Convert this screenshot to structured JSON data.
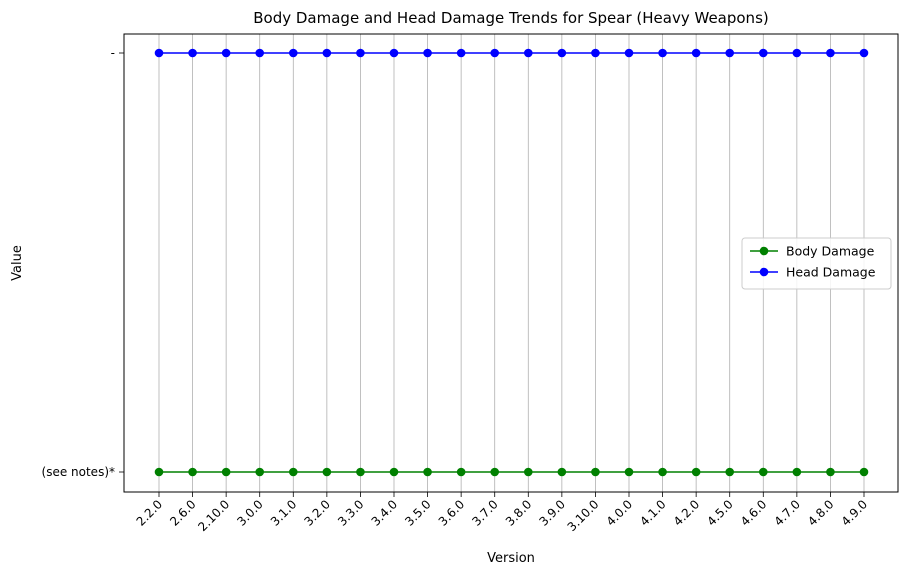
{
  "chart_data": {
    "type": "line",
    "title": "Body Damage and Head Damage Trends for Spear (Heavy Weapons)",
    "xlabel": "Version",
    "ylabel": "Value",
    "categories": [
      "2.2.0",
      "2.6.0",
      "2.10.0",
      "3.0.0",
      "3.1.0",
      "3.2.0",
      "3.3.0",
      "3.4.0",
      "3.5.0",
      "3.6.0",
      "3.7.0",
      "3.8.0",
      "3.9.0",
      "3.10.0",
      "4.0.0",
      "4.1.0",
      "4.2.0",
      "4.5.0",
      "4.6.0",
      "4.7.0",
      "4.8.0",
      "4.9.0"
    ],
    "y_categories": [
      "(see notes)*",
      "-"
    ],
    "series": [
      {
        "name": "Body Damage",
        "color": "#008000",
        "values": [
          "(see notes)*",
          "(see notes)*",
          "(see notes)*",
          "(see notes)*",
          "(see notes)*",
          "(see notes)*",
          "(see notes)*",
          "(see notes)*",
          "(see notes)*",
          "(see notes)*",
          "(see notes)*",
          "(see notes)*",
          "(see notes)*",
          "(see notes)*",
          "(see notes)*",
          "(see notes)*",
          "(see notes)*",
          "(see notes)*",
          "(see notes)*",
          "(see notes)*",
          "(see notes)*",
          "(see notes)*"
        ]
      },
      {
        "name": "Head Damage",
        "color": "#0000ff",
        "values": [
          "-",
          "-",
          "-",
          "-",
          "-",
          "-",
          "-",
          "-",
          "-",
          "-",
          "-",
          "-",
          "-",
          "-",
          "-",
          "-",
          "-",
          "-",
          "-",
          "-",
          "-",
          "-"
        ]
      }
    ],
    "grid": "vertical",
    "legend_position": "center-right"
  }
}
